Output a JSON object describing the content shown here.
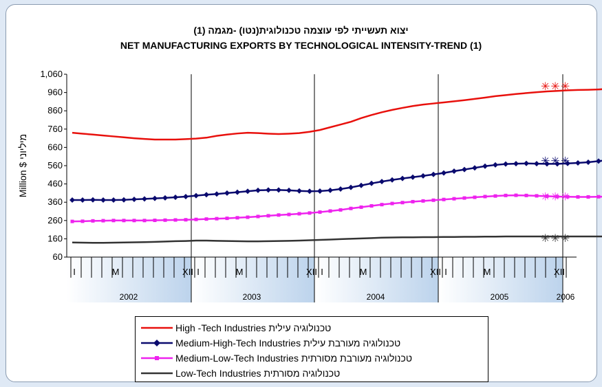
{
  "title_he": "יצוא תעשייתי לפי עוצמה טכנולוגית(נטו) -מגמה (1)",
  "title_en": "NET MANUFACTURING EXPORTS BY TECHNOLOGICAL INTENSITY-TREND (1)",
  "chart_data": {
    "type": "line",
    "ylabel": "Million $ מיליוני",
    "ylim": [
      60,
      1060
    ],
    "yticks": [
      "1,060",
      "960",
      "860",
      "760",
      "660",
      "560",
      "460",
      "360",
      "260",
      "160",
      "60"
    ],
    "ytick_values": [
      1060,
      960,
      860,
      760,
      660,
      560,
      460,
      360,
      260,
      160,
      60
    ],
    "month_labels": [
      "I",
      "M",
      "XII",
      "I",
      "M",
      "XII",
      "I",
      "M",
      "XII",
      "I",
      "M",
      "XII"
    ],
    "years": [
      "2002",
      "2003",
      "2004",
      "2005",
      "2006"
    ],
    "grid": "vertical year separators",
    "forecast_marker": "✳✳✳",
    "series": [
      {
        "name": "High -Tech Industries",
        "name_he": "טכנולוגיה עילית",
        "color": "#e8100c",
        "marker": "none",
        "values": [
          740,
          735,
          730,
          725,
          720,
          715,
          710,
          706,
          703,
          703,
          703,
          705,
          708,
          713,
          723,
          730,
          736,
          740,
          738,
          735,
          733,
          735,
          738,
          745,
          755,
          770,
          785,
          800,
          820,
          837,
          852,
          865,
          876,
          886,
          894,
          900,
          906,
          912,
          918,
          925,
          932,
          940,
          946,
          952,
          957,
          962,
          966,
          969,
          972,
          974,
          975,
          977,
          980,
          983,
          987,
          991,
          995,
          997
        ]
      },
      {
        "name": "Medium-High-Tech Industries",
        "name_he": "טכנולוגיה מעורבת עילית",
        "color": "#0a0a6e",
        "marker": "diamond",
        "values": [
          372,
          372,
          373,
          372,
          372,
          373,
          376,
          378,
          381,
          384,
          387,
          391,
          396,
          401,
          405,
          410,
          415,
          420,
          425,
          427,
          427,
          425,
          422,
          420,
          421,
          425,
          432,
          441,
          452,
          463,
          473,
          482,
          490,
          497,
          504,
          512,
          520,
          530,
          539,
          548,
          557,
          564,
          569,
          571,
          572,
          571,
          570,
          570,
          572,
          575,
          579,
          585,
          590,
          594,
          596,
          594,
          591,
          589
        ]
      },
      {
        "name": "Medium-Low-Tech Industries",
        "name_he": "טכנולוגיה מעורבת מסורתית",
        "color": "#ee22ee",
        "marker": "square",
        "values": [
          255,
          256,
          258,
          259,
          260,
          260,
          260,
          260,
          261,
          262,
          263,
          264,
          266,
          268,
          270,
          272,
          275,
          278,
          282,
          286,
          290,
          293,
          297,
          301,
          306,
          312,
          318,
          326,
          333,
          340,
          347,
          353,
          358,
          363,
          367,
          371,
          375,
          379,
          383,
          387,
          391,
          394,
          397,
          398,
          397,
          395,
          393,
          391,
          390,
          389,
          389,
          390,
          391,
          391,
          391,
          391,
          392,
          392
        ]
      },
      {
        "name": "Low-Tech Industries",
        "name_he": "טכנולוגיה מסורתית",
        "color": "#333333",
        "marker": "none",
        "values": [
          140,
          139,
          138,
          138,
          139,
          140,
          141,
          142,
          143,
          145,
          147,
          148,
          150,
          150,
          149,
          148,
          147,
          146,
          146,
          147,
          148,
          149,
          150,
          152,
          154,
          156,
          158,
          160,
          162,
          164,
          166,
          167,
          168,
          168,
          169,
          169,
          170,
          170,
          171,
          171,
          172,
          172,
          173,
          173,
          173,
          173,
          173,
          173,
          173,
          173,
          173,
          173,
          173,
          173,
          172,
          170,
          168,
          165
        ]
      }
    ]
  }
}
